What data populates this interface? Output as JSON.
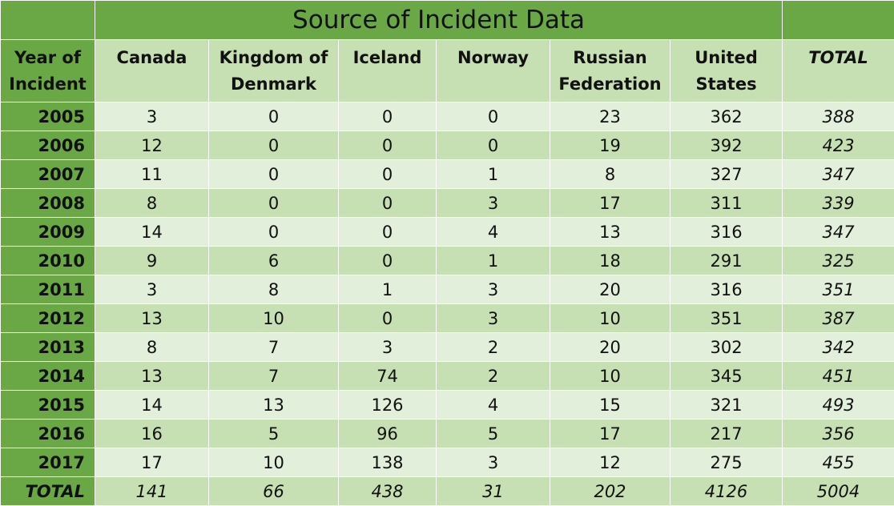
{
  "title": "Source of Incident Data",
  "columns": {
    "year": "Year of Incident",
    "canada": "Canada",
    "denmark": "Kingdom of Denmark",
    "iceland": "Iceland",
    "norway": "Norway",
    "russia": "Russian Federation",
    "us": "United States",
    "total": "TOTAL"
  },
  "rows": [
    {
      "year": "2005",
      "canada": "3",
      "denmark": "0",
      "iceland": "0",
      "norway": "0",
      "russia": "23",
      "us": "362",
      "total": "388"
    },
    {
      "year": "2006",
      "canada": "12",
      "denmark": "0",
      "iceland": "0",
      "norway": "0",
      "russia": "19",
      "us": "392",
      "total": "423"
    },
    {
      "year": "2007",
      "canada": "11",
      "denmark": "0",
      "iceland": "0",
      "norway": "1",
      "russia": "8",
      "us": "327",
      "total": "347"
    },
    {
      "year": "2008",
      "canada": "8",
      "denmark": "0",
      "iceland": "0",
      "norway": "3",
      "russia": "17",
      "us": "311",
      "total": "339"
    },
    {
      "year": "2009",
      "canada": "14",
      "denmark": "0",
      "iceland": "0",
      "norway": "4",
      "russia": "13",
      "us": "316",
      "total": "347"
    },
    {
      "year": "2010",
      "canada": "9",
      "denmark": "6",
      "iceland": "0",
      "norway": "1",
      "russia": "18",
      "us": "291",
      "total": "325"
    },
    {
      "year": "2011",
      "canada": "3",
      "denmark": "8",
      "iceland": "1",
      "norway": "3",
      "russia": "20",
      "us": "316",
      "total": "351"
    },
    {
      "year": "2012",
      "canada": "13",
      "denmark": "10",
      "iceland": "0",
      "norway": "3",
      "russia": "10",
      "us": "351",
      "total": "387"
    },
    {
      "year": "2013",
      "canada": "8",
      "denmark": "7",
      "iceland": "3",
      "norway": "2",
      "russia": "20",
      "us": "302",
      "total": "342"
    },
    {
      "year": "2014",
      "canada": "13",
      "denmark": "7",
      "iceland": "74",
      "norway": "2",
      "russia": "10",
      "us": "345",
      "total": "451"
    },
    {
      "year": "2015",
      "canada": "14",
      "denmark": "13",
      "iceland": "126",
      "norway": "4",
      "russia": "15",
      "us": "321",
      "total": "493"
    },
    {
      "year": "2016",
      "canada": "16",
      "denmark": "5",
      "iceland": "96",
      "norway": "5",
      "russia": "17",
      "us": "217",
      "total": "356"
    },
    {
      "year": "2017",
      "canada": "17",
      "denmark": "10",
      "iceland": "138",
      "norway": "3",
      "russia": "12",
      "us": "275",
      "total": "455"
    }
  ],
  "totals": {
    "label": "TOTAL",
    "canada": "141",
    "denmark": "66",
    "iceland": "438",
    "norway": "31",
    "russia": "202",
    "us": "4126",
    "total": "5004"
  },
  "colors": {
    "header_green": "#6aa745",
    "band_light": "#e2efda",
    "band_medium": "#c6e0b4"
  }
}
